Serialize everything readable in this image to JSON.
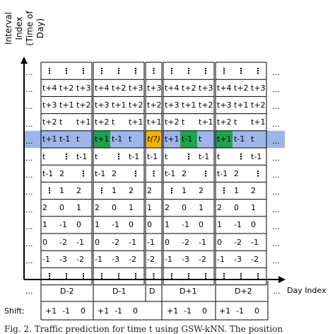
{
  "axes": {
    "y_label_line1": "Interval Index",
    "y_label_line2": "(Time of Day)",
    "x_label": "Day Index",
    "ellipsis": "...",
    "vdots": "⋮"
  },
  "highlight_colors": {
    "row_band": "#9db5e8",
    "green": "#1fa34a",
    "yellow": "#f5b300",
    "grid": "#000000"
  },
  "rows": [
    [
      "⋮",
      "⋮",
      "⋮",
      "⋮",
      "⋮",
      "⋮",
      "⋮",
      "⋮",
      "⋮",
      "⋮",
      "⋮",
      "⋮",
      "⋮"
    ],
    [
      "t+4",
      "t+2",
      "t+3",
      "t+4",
      "t+2",
      "t+3",
      "t+3",
      "t+4",
      "t+2",
      "t+3",
      "t+4",
      "t+2",
      "t+3"
    ],
    [
      "t+3",
      "t+1",
      "t+2",
      "t+3",
      "t+1",
      "t+2",
      "t+2",
      "t+3",
      "t+1",
      "t+2",
      "t+3",
      "t+1",
      "t+2"
    ],
    [
      "t+2",
      "t",
      "t+1",
      "t+2",
      "t",
      "t+1",
      "t+1",
      "t+2",
      "t",
      "t+1",
      "t+2",
      "t",
      "t+1"
    ],
    [
      "t+1",
      "t-1",
      "t",
      "t+1",
      "t-1",
      "t",
      "t(?)",
      "t+1",
      "t-1",
      "t",
      "t+1",
      "t-1",
      "t"
    ],
    [
      "t",
      "⋮",
      "t-1",
      "t",
      "⋮",
      "t-1",
      "t-1",
      "t",
      "⋮",
      "t-1",
      "t",
      "⋮",
      "t-1"
    ],
    [
      "t-1",
      "2",
      "⋮",
      "t-1",
      "2",
      "⋮",
      "⋮",
      "t-1",
      "2",
      "⋮",
      "t-1",
      "2",
      "⋮"
    ],
    [
      "⋮",
      "1",
      "2",
      "⋮",
      "1",
      "2",
      "2",
      "⋮",
      "1",
      "2",
      "⋮",
      "1",
      "2"
    ],
    [
      "2",
      "0",
      "1",
      "2",
      "0",
      "1",
      "1",
      "2",
      "0",
      "1",
      "2",
      "0",
      "1"
    ],
    [
      "1",
      "-1",
      "0",
      "1",
      "-1",
      "0",
      "0",
      "1",
      "-1",
      "0",
      "1",
      "-1",
      "0"
    ],
    [
      "0",
      "-2",
      "-1",
      "0",
      "-2",
      "-1",
      "-1",
      "0",
      "-2",
      "-1",
      "0",
      "-2",
      "-1"
    ],
    [
      "-1",
      "-3",
      "-2",
      "-1",
      "-3",
      "-2",
      "-2",
      "-1",
      "-3",
      "-2",
      "-1",
      "-3",
      "-2"
    ],
    [
      "⋮",
      "⋮",
      "⋮",
      "⋮",
      "⋮",
      "⋮",
      "⋮",
      "⋮",
      "⋮",
      "⋮",
      "⋮",
      "⋮",
      "⋮"
    ]
  ],
  "day_labels": [
    "...",
    "D-2",
    "D-1",
    "D",
    "D+1",
    "D+2",
    "..."
  ],
  "shift": {
    "label": "Shift:",
    "values": [
      "+1",
      "-1",
      "0",
      "+1",
      "-1",
      "0",
      "+1",
      "-1",
      "0",
      "+1",
      "-1",
      "0"
    ]
  },
  "caption": "Fig. 2. Traffic prediction for time t using GSW-kNN. The position"
}
